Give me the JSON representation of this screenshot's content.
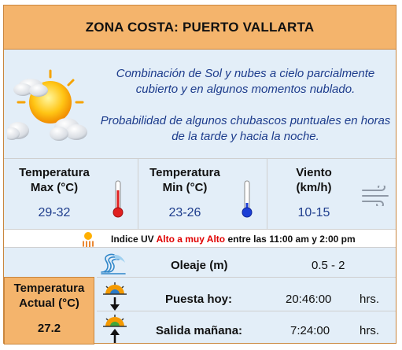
{
  "header": {
    "title": "ZONA COSTA: PUERTO VALLARTA"
  },
  "forecast": {
    "icon": "partly-cloudy-icon",
    "line1": "Combinación de Sol y nubes a cielo parcialmente cubierto y en algunos momentos nublado.",
    "line2": "Probabilidad de algunos chubascos puntuales en horas de la tarde y hacia la noche."
  },
  "metrics": {
    "temp_max": {
      "label_1": "Temperatura",
      "label_2": "Max (°C)",
      "value": "29-32",
      "icon": "thermometer-hot-icon"
    },
    "temp_min": {
      "label_1": "Temperatura",
      "label_2": "Min (°C)",
      "value": "23-26",
      "icon": "thermometer-cold-icon"
    },
    "wind": {
      "label_1": "Viento",
      "label_2": "(km/h)",
      "value": "10-15",
      "icon": "wind-icon"
    }
  },
  "uv": {
    "prefix": "Indice UV",
    "level": "Alto a muy Alto",
    "between": "entre las",
    "start": "11:00 am",
    "and": "y",
    "end": "2:00 pm",
    "icon": "uv-sun-icon"
  },
  "current": {
    "label_1": "Temperatura",
    "label_2": "Actual (°C)",
    "value": "27.2"
  },
  "waves": {
    "label": "Oleaje (m)",
    "value": "0.5 - 2",
    "icon": "wave-icon"
  },
  "sunset": {
    "label": "Puesta hoy:",
    "value": "20:46:00",
    "unit": "hrs.",
    "icon": "sunset-icon"
  },
  "sunrise": {
    "label": "Salida mañana:",
    "value": "7:24:00",
    "unit": "hrs.",
    "icon": "sunrise-icon"
  },
  "colors": {
    "header": "#f4b46c",
    "panel": "#e3eef8",
    "text_blue": "#1d3c8c",
    "uv_red": "#e00000",
    "border": "#c9863e"
  }
}
